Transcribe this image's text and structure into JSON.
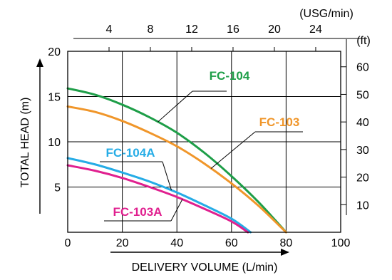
{
  "chart_data": {
    "type": "line",
    "xlabel": "DELIVERY VOLUME (L/min)",
    "ylabel": "TOTAL HEAD (m)",
    "xlim": [
      0,
      100
    ],
    "ylim": [
      0,
      20
    ],
    "x_ticks": [
      0,
      20,
      40,
      60,
      80,
      100
    ],
    "y_ticks": [
      5,
      10,
      15,
      20
    ],
    "grid": true,
    "secondary_x_axis": {
      "unit": "(USG/min)",
      "ticks": [
        4,
        8,
        12,
        16,
        20,
        24
      ]
    },
    "secondary_y_axis": {
      "unit": "(ft)",
      "ticks": [
        10,
        20,
        30,
        40,
        50,
        60
      ]
    },
    "series": [
      {
        "name": "FC-104",
        "color": "#1e9e48",
        "x": [
          0,
          10,
          20,
          30,
          40,
          50,
          60,
          70,
          80
        ],
        "y": [
          15.9,
          15.2,
          14.1,
          12.7,
          11.0,
          8.8,
          6.2,
          3.3,
          0
        ]
      },
      {
        "name": "FC-103",
        "color": "#f0962a",
        "x": [
          0,
          10,
          20,
          30,
          40,
          50,
          60,
          70,
          80
        ],
        "y": [
          13.9,
          13.3,
          12.3,
          11.0,
          9.5,
          7.6,
          5.4,
          2.9,
          0
        ]
      },
      {
        "name": "FC-104A",
        "color": "#25ace6",
        "x": [
          0,
          10,
          20,
          30,
          40,
          50,
          60,
          67
        ],
        "y": [
          8.2,
          7.5,
          6.6,
          5.6,
          4.4,
          3.0,
          1.5,
          0
        ]
      },
      {
        "name": "FC-103A",
        "color": "#e0208f",
        "x": [
          0,
          10,
          20,
          30,
          40,
          50,
          60,
          66
        ],
        "y": [
          7.4,
          6.8,
          6.0,
          5.0,
          3.9,
          2.6,
          1.2,
          0
        ]
      }
    ]
  }
}
